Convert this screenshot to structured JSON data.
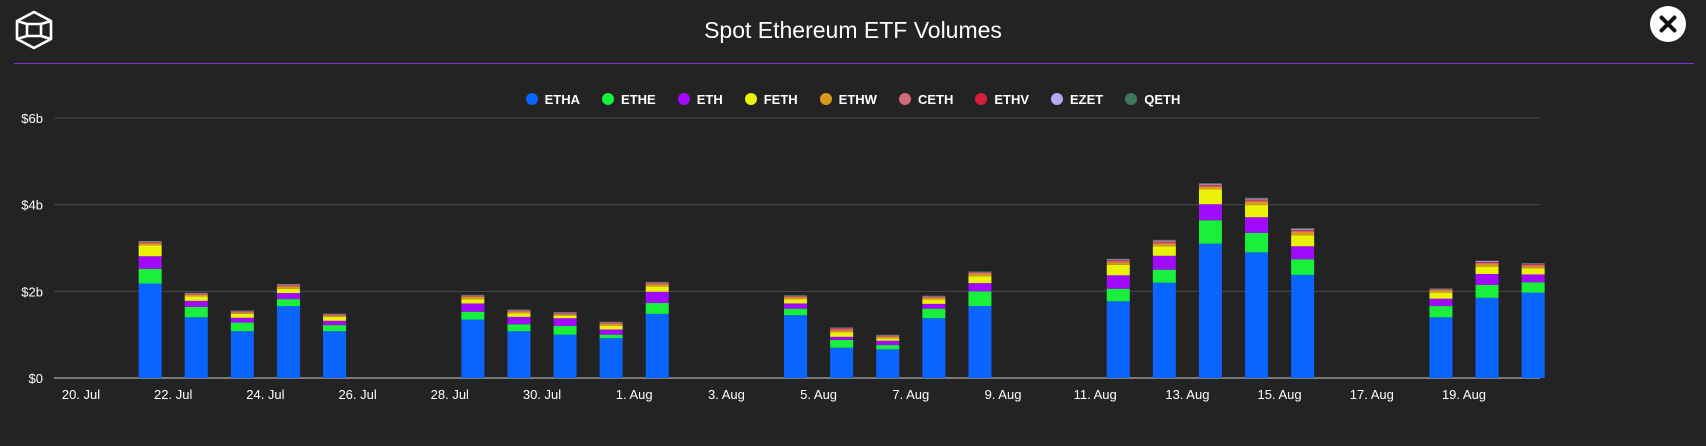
{
  "header": {
    "title": "Spot Ethereum ETF Volumes",
    "logo_icon": "cube-logo-icon",
    "close_icon": "close-icon"
  },
  "colors": {
    "background": "#232323",
    "accent_line": "#7f2fd6",
    "grid": "#4a4a4a"
  },
  "chart_data": {
    "type": "bar",
    "stacked": true,
    "title": "Spot Ethereum ETF Volumes",
    "xlabel": "",
    "ylabel": "",
    "y_tick_labels": [
      "$0",
      "$2b",
      "$4b",
      "$6b"
    ],
    "y_ticks": [
      0,
      2,
      4,
      6
    ],
    "ylim": [
      0,
      6
    ],
    "y_unit": "billion USD",
    "grid": true,
    "legend_position": "top",
    "x_tick_labels": [
      "20. Jul",
      "22. Jul",
      "24. Jul",
      "26. Jul",
      "28. Jul",
      "30. Jul",
      "1. Aug",
      "3. Aug",
      "5. Aug",
      "7. Aug",
      "9. Aug",
      "11. Aug",
      "13. Aug",
      "15. Aug",
      "17. Aug",
      "19. Aug"
    ],
    "x_tick_days": [
      0,
      2,
      4,
      6,
      8,
      10,
      12,
      14,
      16,
      18,
      20,
      22,
      24,
      26,
      28,
      30
    ],
    "categories": [
      "21. Jul",
      "22. Jul",
      "23. Jul",
      "24. Jul",
      "25. Jul",
      "28. Jul",
      "29. Jul",
      "30. Jul",
      "31. Jul",
      "1. Aug",
      "4. Aug",
      "5. Aug",
      "6. Aug",
      "7. Aug",
      "8. Aug",
      "11. Aug",
      "12. Aug",
      "13. Aug",
      "14. Aug",
      "15. Aug",
      "18. Aug",
      "19. Aug",
      "20. Aug"
    ],
    "category_days": [
      1,
      2,
      3,
      4,
      5,
      8,
      9,
      10,
      11,
      12,
      15,
      16,
      17,
      18,
      19,
      22,
      23,
      24,
      25,
      26,
      29,
      30,
      31
    ],
    "series": [
      {
        "name": "ETHA",
        "color": "#0a64ff",
        "values": [
          2.18,
          1.4,
          1.08,
          1.66,
          1.08,
          1.35,
          1.08,
          1.0,
          0.92,
          1.48,
          1.45,
          0.7,
          0.66,
          1.38,
          1.66,
          1.77,
          2.2,
          3.1,
          2.9,
          2.38,
          1.4,
          1.85,
          1.97
        ]
      },
      {
        "name": "ETHE",
        "color": "#19f03c",
        "values": [
          0.34,
          0.24,
          0.2,
          0.16,
          0.14,
          0.18,
          0.16,
          0.2,
          0.08,
          0.25,
          0.15,
          0.18,
          0.1,
          0.22,
          0.34,
          0.29,
          0.3,
          0.54,
          0.45,
          0.36,
          0.26,
          0.3,
          0.24
        ]
      },
      {
        "name": "ETH",
        "color": "#a20aff",
        "values": [
          0.29,
          0.14,
          0.11,
          0.14,
          0.1,
          0.19,
          0.17,
          0.18,
          0.12,
          0.26,
          0.12,
          0.07,
          0.1,
          0.11,
          0.19,
          0.31,
          0.32,
          0.37,
          0.36,
          0.3,
          0.17,
          0.25,
          0.18
        ]
      },
      {
        "name": "FETH",
        "color": "#ebf20a",
        "values": [
          0.25,
          0.1,
          0.09,
          0.1,
          0.09,
          0.1,
          0.08,
          0.06,
          0.08,
          0.12,
          0.1,
          0.1,
          0.05,
          0.1,
          0.16,
          0.24,
          0.22,
          0.34,
          0.28,
          0.25,
          0.14,
          0.17,
          0.14
        ]
      },
      {
        "name": "ETHW",
        "color": "#d89a1a",
        "values": [
          0.05,
          0.04,
          0.03,
          0.05,
          0.03,
          0.05,
          0.04,
          0.03,
          0.05,
          0.05,
          0.04,
          0.05,
          0.04,
          0.04,
          0.06,
          0.06,
          0.06,
          0.06,
          0.08,
          0.08,
          0.05,
          0.06,
          0.05
        ]
      },
      {
        "name": "CETH",
        "color": "#d36a78",
        "values": [
          0.02,
          0.02,
          0.02,
          0.03,
          0.02,
          0.02,
          0.02,
          0.02,
          0.02,
          0.03,
          0.02,
          0.03,
          0.02,
          0.02,
          0.02,
          0.03,
          0.03,
          0.03,
          0.03,
          0.03,
          0.02,
          0.03,
          0.03
        ]
      },
      {
        "name": "ETHV",
        "color": "#d81f3c",
        "values": [
          0.01,
          0.01,
          0.01,
          0.01,
          0.01,
          0.01,
          0.01,
          0.01,
          0.01,
          0.01,
          0.01,
          0.02,
          0.01,
          0.01,
          0.01,
          0.02,
          0.02,
          0.02,
          0.02,
          0.02,
          0.01,
          0.02,
          0.02
        ]
      },
      {
        "name": "EZET",
        "color": "#b4a9f5",
        "values": [
          0.01,
          0.01,
          0.01,
          0.01,
          0.01,
          0.01,
          0.01,
          0.01,
          0.01,
          0.01,
          0.01,
          0.01,
          0.01,
          0.01,
          0.01,
          0.02,
          0.02,
          0.02,
          0.02,
          0.02,
          0.01,
          0.02,
          0.01
        ]
      },
      {
        "name": "QETH",
        "color": "#3d7a5a",
        "values": [
          0.01,
          0.01,
          0.01,
          0.01,
          0.01,
          0.01,
          0.01,
          0.01,
          0.01,
          0.01,
          0.01,
          0.01,
          0.01,
          0.01,
          0.01,
          0.01,
          0.02,
          0.02,
          0.02,
          0.02,
          0.01,
          0.01,
          0.01
        ]
      }
    ]
  }
}
